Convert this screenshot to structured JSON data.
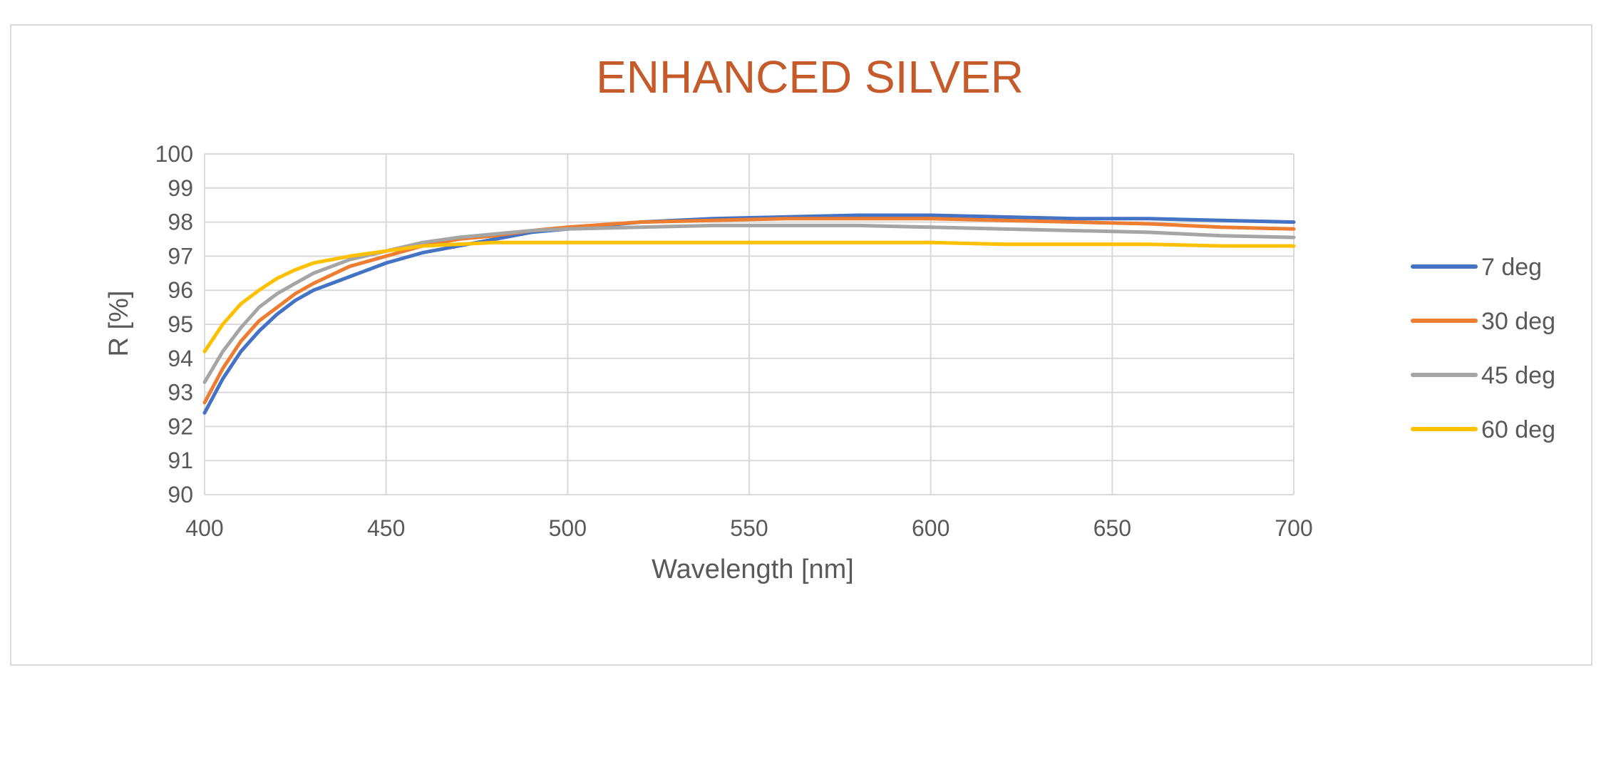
{
  "chart_data": {
    "type": "line",
    "title": "ENHANCED SILVER",
    "xlabel": "Wavelength [nm]",
    "ylabel": "R [%]",
    "xlim": [
      400,
      700
    ],
    "ylim": [
      90,
      100
    ],
    "x_ticks": [
      400,
      450,
      500,
      550,
      600,
      650,
      700
    ],
    "y_ticks": [
      90,
      91,
      92,
      93,
      94,
      95,
      96,
      97,
      98,
      99,
      100
    ],
    "grid": true,
    "legend_position": "right",
    "x": [
      400,
      405,
      410,
      415,
      420,
      425,
      430,
      440,
      450,
      460,
      470,
      480,
      490,
      500,
      520,
      540,
      560,
      580,
      600,
      620,
      640,
      660,
      680,
      700
    ],
    "series": [
      {
        "name": "7 deg",
        "color": "#4472c4",
        "values": [
          92.4,
          93.4,
          94.2,
          94.8,
          95.3,
          95.7,
          96.0,
          96.4,
          96.8,
          97.1,
          97.3,
          97.5,
          97.7,
          97.8,
          98.0,
          98.1,
          98.15,
          98.2,
          98.2,
          98.15,
          98.1,
          98.1,
          98.05,
          98.0
        ]
      },
      {
        "name": "30 deg",
        "color": "#ed7d31",
        "values": [
          92.7,
          93.7,
          94.5,
          95.1,
          95.5,
          95.9,
          96.2,
          96.7,
          97.0,
          97.3,
          97.5,
          97.6,
          97.75,
          97.85,
          98.0,
          98.05,
          98.1,
          98.1,
          98.1,
          98.05,
          98.0,
          97.95,
          97.85,
          97.8
        ]
      },
      {
        "name": "45 deg",
        "color": "#a5a5a5",
        "values": [
          93.3,
          94.2,
          94.9,
          95.5,
          95.9,
          96.2,
          96.5,
          96.9,
          97.15,
          97.4,
          97.55,
          97.65,
          97.75,
          97.8,
          97.85,
          97.9,
          97.9,
          97.9,
          97.85,
          97.8,
          97.75,
          97.7,
          97.6,
          97.55
        ]
      },
      {
        "name": "60 deg",
        "color": "#ffc000",
        "values": [
          94.2,
          95.0,
          95.6,
          96.0,
          96.35,
          96.6,
          96.8,
          97.0,
          97.15,
          97.3,
          97.35,
          97.4,
          97.4,
          97.4,
          97.4,
          97.4,
          97.4,
          97.4,
          97.4,
          97.35,
          97.35,
          97.35,
          97.3,
          97.3
        ]
      }
    ]
  }
}
